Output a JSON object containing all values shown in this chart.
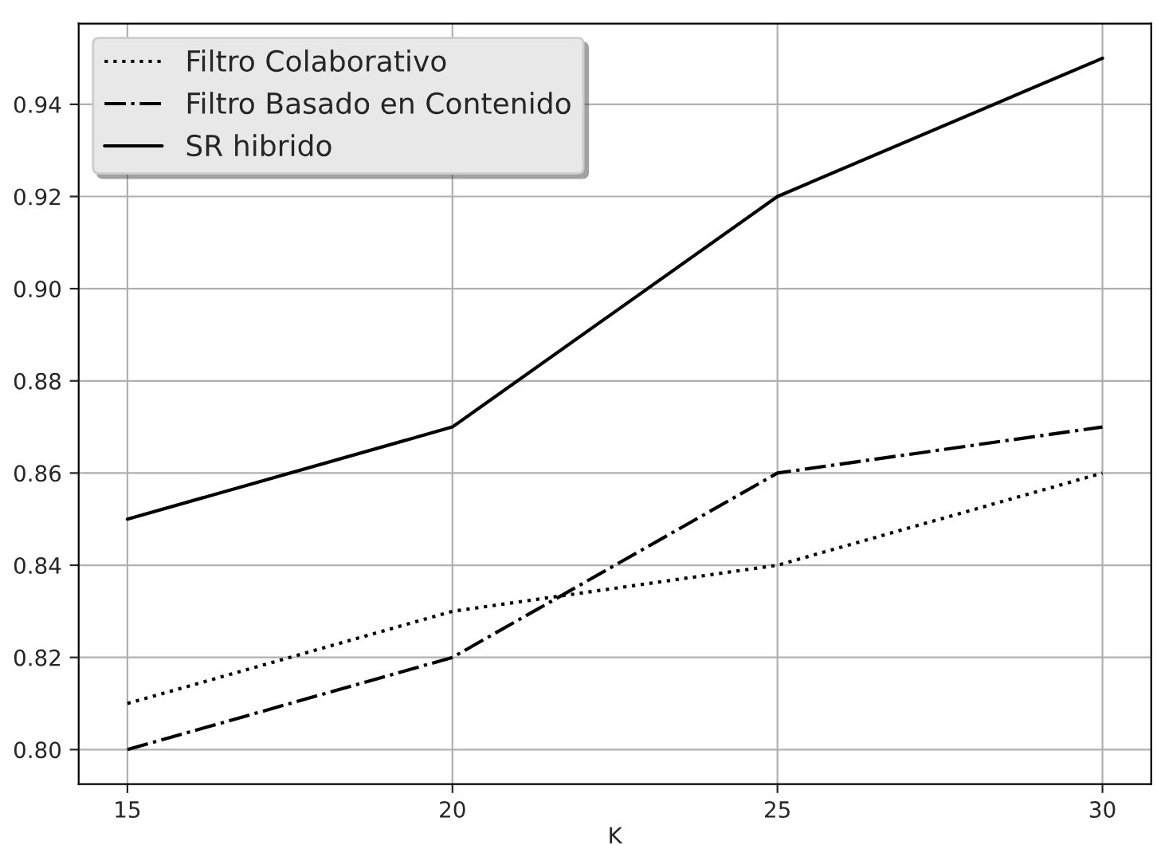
{
  "chart_data": {
    "type": "line",
    "xlabel": "K",
    "x": [
      15,
      20,
      25,
      30
    ],
    "series": [
      {
        "name": "Filtro Colaborativo",
        "color": "#000000",
        "line_style": "dotted",
        "values": [
          0.81,
          0.83,
          0.84,
          0.86
        ]
      },
      {
        "name": "Filtro Basado en Contenido",
        "color": "#000000",
        "line_style": "dashdot",
        "values": [
          0.8,
          0.82,
          0.86,
          0.87
        ]
      },
      {
        "name": "SR hibrido",
        "color": "#000000",
        "line_style": "solid",
        "values": [
          0.85,
          0.87,
          0.92,
          0.95
        ]
      }
    ],
    "xlim": [
      14.25,
      30.75
    ],
    "xticks": [
      15,
      20,
      25,
      30
    ],
    "ylim": [
      0.7925,
      0.9575
    ],
    "yticks": [
      {
        "value": 0.8,
        "label": "0.80"
      },
      {
        "value": 0.82,
        "label": "0.82"
      },
      {
        "value": 0.84,
        "label": "0.84"
      },
      {
        "value": 0.86,
        "label": "0.86"
      },
      {
        "value": 0.88,
        "label": "0.88"
      },
      {
        "value": 0.9,
        "label": "0.90"
      },
      {
        "value": 0.92,
        "label": "0.92"
      },
      {
        "value": 0.94,
        "label": "0.94"
      }
    ],
    "grid": true,
    "legend": "top left"
  }
}
